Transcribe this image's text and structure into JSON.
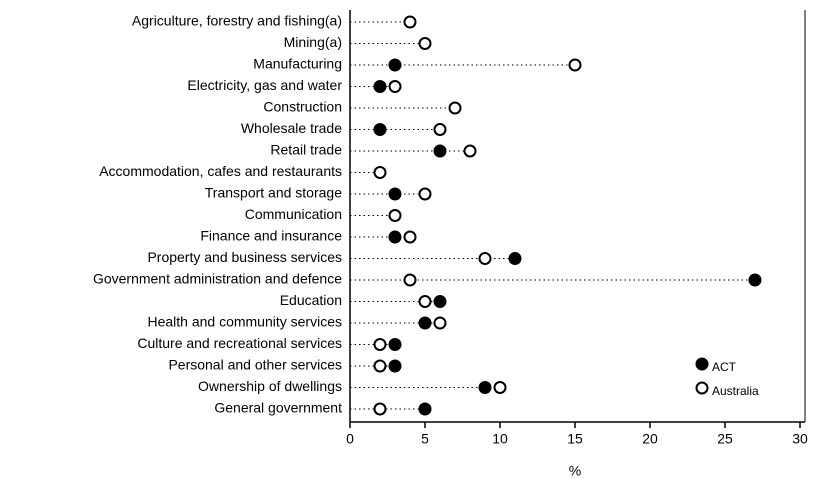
{
  "chart_data": {
    "type": "dot",
    "categories": [
      "Agriculture, forestry and fishing(a)",
      "Mining(a)",
      "Manufacturing",
      "Electricity, gas and water",
      "Construction",
      "Wholesale trade",
      "Retail trade",
      "Accommodation, cafes and restaurants",
      "Transport and storage",
      "Communication",
      "Finance and insurance",
      "Property and business services",
      "Government administration and defence",
      "Education",
      "Health and community services",
      "Culture and recreational services",
      "Personal and other services",
      "Ownership of dwellings",
      "General government"
    ],
    "series": [
      {
        "name": "ACT",
        "color": "#000000",
        "values": [
          null,
          null,
          3,
          2,
          null,
          2,
          6,
          null,
          3,
          null,
          3,
          11,
          27,
          6,
          5,
          3,
          3,
          9,
          5
        ]
      },
      {
        "name": "Australia",
        "color": "#ffffff",
        "values": [
          4,
          5,
          15,
          3,
          7,
          6,
          8,
          2,
          5,
          3,
          4,
          9,
          4,
          5,
          6,
          2,
          2,
          10,
          2
        ]
      }
    ],
    "x_label": "%",
    "xlim": [
      0,
      30
    ],
    "xticks": [
      0,
      5,
      10,
      15,
      20,
      25,
      30
    ],
    "legend": "lower right"
  }
}
